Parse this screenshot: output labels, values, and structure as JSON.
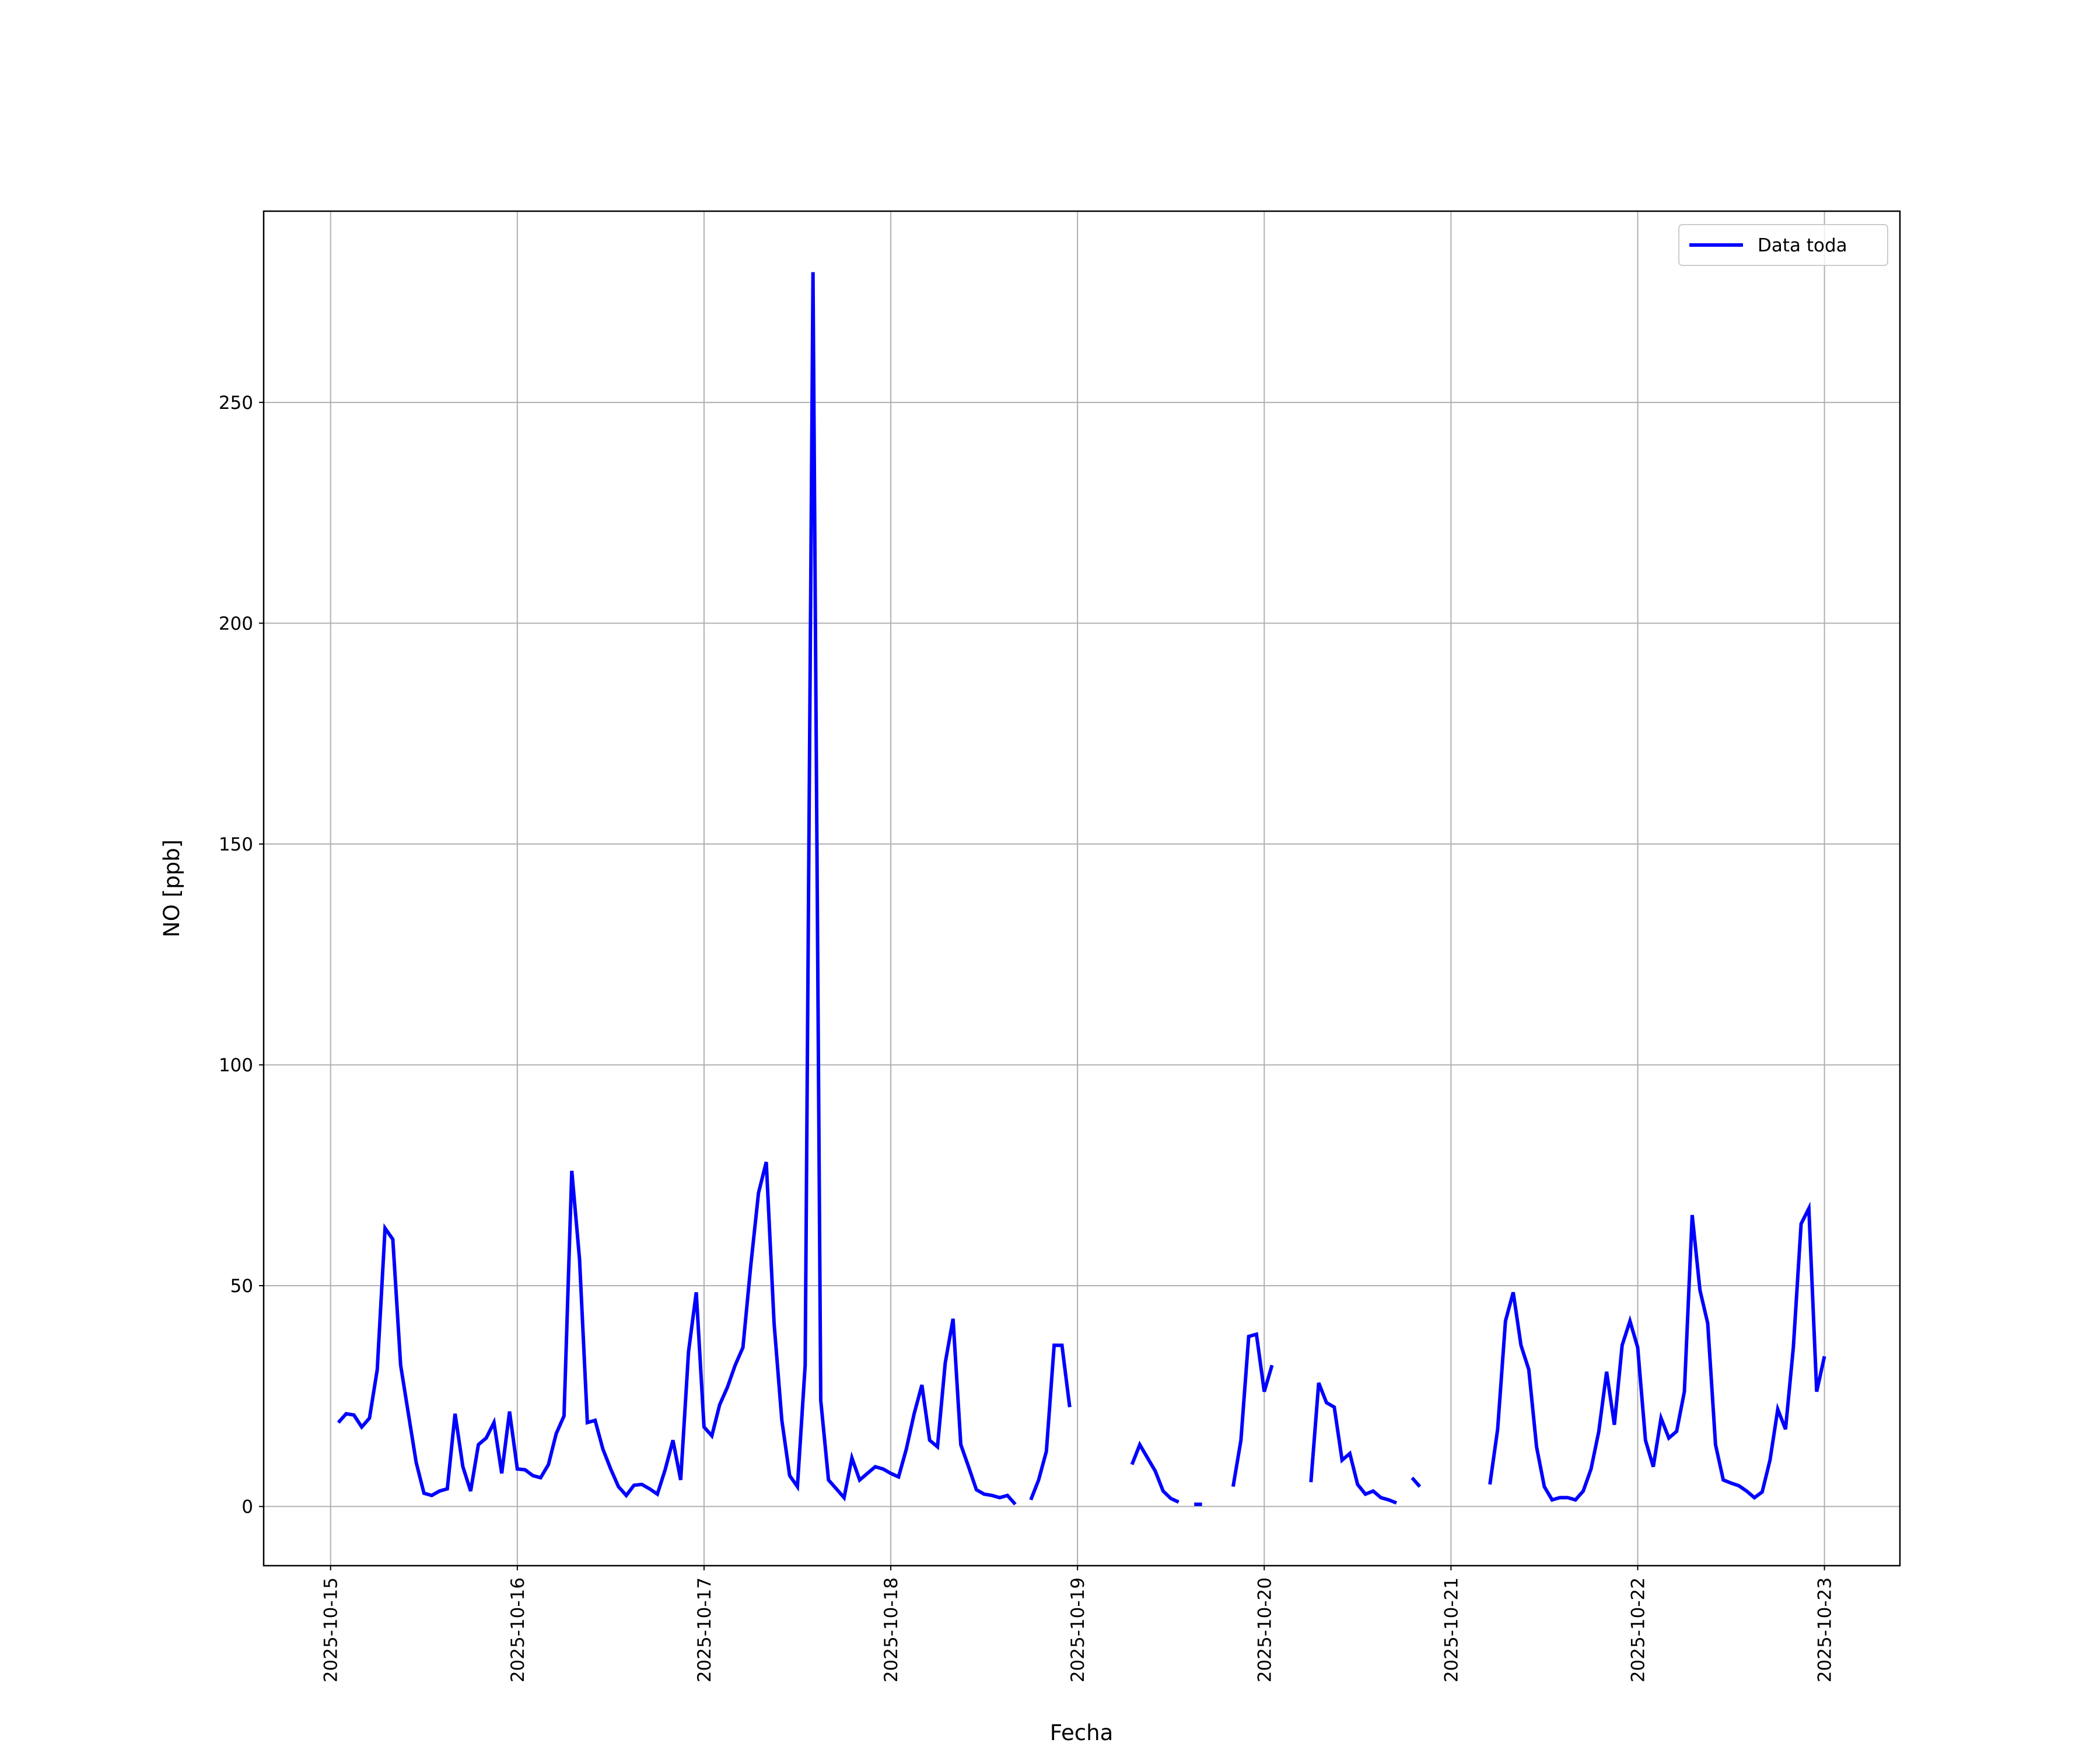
{
  "chart_data": {
    "type": "line",
    "x_label": "Fecha",
    "y_label": "NO [ppb]",
    "x": [
      1,
      2,
      3,
      4,
      5,
      6,
      7,
      8,
      9,
      10,
      11,
      12,
      13,
      14,
      15,
      16,
      17,
      18,
      19,
      20,
      21,
      22,
      23,
      24,
      25,
      26,
      27,
      28,
      29,
      30,
      31,
      32,
      33,
      34,
      35,
      36,
      37,
      38,
      39,
      40,
      41,
      42,
      43,
      44,
      45,
      46,
      47,
      48,
      49,
      50,
      51,
      52,
      53,
      54,
      55,
      56,
      57,
      58,
      59,
      60,
      61,
      62,
      63,
      64,
      65,
      66,
      67,
      68,
      69,
      70,
      71,
      72,
      73,
      74,
      75,
      76,
      77,
      78,
      79,
      80,
      81,
      82,
      83,
      84,
      85,
      86,
      87,
      88,
      89,
      90,
      91,
      92,
      93,
      94,
      95,
      96,
      97,
      98,
      99,
      100,
      101,
      102,
      103,
      104,
      105,
      106,
      107,
      108,
      109,
      110,
      111,
      112,
      113,
      114,
      115,
      116,
      117,
      118,
      119,
      120,
      121,
      122,
      123,
      124,
      125,
      126,
      127,
      128,
      129,
      130,
      131,
      132,
      133,
      134,
      135,
      136,
      137,
      138,
      139,
      140,
      141,
      142,
      143,
      144,
      145,
      146,
      147,
      148,
      149,
      150,
      151,
      152,
      153,
      154,
      155,
      156,
      157,
      158,
      159,
      160,
      161,
      162,
      163,
      164,
      165,
      166,
      167,
      168,
      169,
      170,
      171,
      172,
      173,
      174,
      175,
      176,
      177,
      178,
      179,
      180,
      181,
      182,
      183,
      184,
      185,
      186,
      187,
      188,
      189,
      190,
      191,
      192
    ],
    "series": [
      {
        "name": "Data toda",
        "color": "#0000ff",
        "values": [
          19,
          21,
          20.7,
          18,
          20,
          31,
          63,
          60.5,
          32,
          21,
          10,
          3,
          2.5,
          3.5,
          4,
          21,
          9,
          3.5,
          14,
          15.5,
          19,
          7.5,
          21.5,
          8.5,
          8.3,
          7,
          6.5,
          9.5,
          16.5,
          20.5,
          76,
          56,
          19,
          19.5,
          13,
          8.5,
          4.5,
          2.5,
          4.8,
          5,
          4,
          2.8,
          8.3,
          15,
          6,
          35,
          48.5,
          18,
          16,
          23,
          27,
          32,
          36,
          54.5,
          71,
          78,
          41.5,
          19.5,
          7,
          4.5,
          32,
          279.5,
          24,
          6,
          4,
          2,
          11,
          6,
          7.5,
          9,
          8.5,
          7.5,
          6.7,
          13,
          21,
          27.5,
          15,
          13.5,
          32.5,
          42.5,
          14,
          9,
          3.8,
          2.8,
          2.5,
          2,
          2.5,
          0.5,
          null,
          1.5,
          6,
          12.5,
          36.5,
          36.5,
          22.5,
          null,
          null,
          null,
          null,
          null,
          null,
          null,
          9.5,
          14,
          11,
          8,
          3.5,
          1.8,
          1,
          null,
          0.5,
          0.5,
          null,
          null,
          null,
          4.5,
          15,
          38.5,
          39,
          26,
          32,
          null,
          null,
          null,
          null,
          5.5,
          28,
          23.5,
          22.5,
          10.5,
          12,
          5,
          2.8,
          3.5,
          2,
          1.5,
          0.8,
          null,
          6.5,
          4.5,
          null,
          null,
          null,
          null,
          null,
          null,
          null,
          null,
          5,
          17.5,
          42,
          48.5,
          36.5,
          31,
          13.5,
          4.5,
          1.5,
          2,
          2,
          1.5,
          3.5,
          8.5,
          17,
          30.5,
          18.5,
          36.5,
          42,
          36,
          15,
          9,
          20,
          15.5,
          17,
          26,
          66,
          49,
          41.5,
          14,
          6,
          5.3,
          4.7,
          3.5,
          2,
          3.3,
          10.5,
          22,
          17.5,
          36,
          64,
          67.5,
          26,
          34
        ]
      }
    ],
    "xlim": [
      -8.6,
      201.7
    ],
    "xticks": [
      {
        "value": 0,
        "label": "2025-10-15"
      },
      {
        "value": 24,
        "label": "2025-10-16"
      },
      {
        "value": 48,
        "label": "2025-10-17"
      },
      {
        "value": 72,
        "label": "2025-10-18"
      },
      {
        "value": 96,
        "label": "2025-10-19"
      },
      {
        "value": 120,
        "label": "2025-10-20"
      },
      {
        "value": 144,
        "label": "2025-10-21"
      },
      {
        "value": 168,
        "label": "2025-10-22"
      },
      {
        "value": 192,
        "label": "2025-10-23"
      }
    ],
    "ylim": [
      -13.4,
      293.3
    ],
    "yticks": [
      0,
      50,
      100,
      150,
      200,
      250
    ],
    "grid": true,
    "legend": "upper right"
  }
}
